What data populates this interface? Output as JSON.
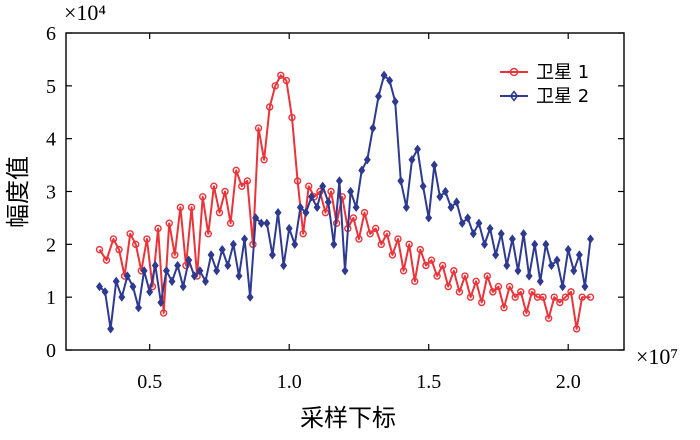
{
  "chart_data": {
    "type": "line",
    "title": "",
    "xlabel": "采样下标",
    "ylabel": "幅度值",
    "x_multiplier": "×10⁷",
    "y_multiplier": "×10⁴",
    "xlim": [
      0.2,
      2.2
    ],
    "ylim": [
      0,
      6
    ],
    "xticks": [
      0.5,
      1.0,
      1.5,
      2.0
    ],
    "xtick_labels": [
      "0.5",
      "1.0",
      "1.5",
      "2.0"
    ],
    "yticks": [
      0,
      1,
      2,
      3,
      4,
      5,
      6
    ],
    "ytick_labels": [
      "0",
      "1",
      "2",
      "3",
      "4",
      "5",
      "6"
    ],
    "legend_position": "top-right",
    "series": [
      {
        "name": "卫星 1",
        "color": "#e8343a",
        "marker": "circle",
        "x": [
          0.32,
          0.345,
          0.37,
          0.39,
          0.41,
          0.43,
          0.45,
          0.47,
          0.49,
          0.51,
          0.53,
          0.55,
          0.57,
          0.59,
          0.61,
          0.63,
          0.65,
          0.67,
          0.69,
          0.71,
          0.73,
          0.75,
          0.77,
          0.79,
          0.81,
          0.83,
          0.85,
          0.87,
          0.89,
          0.91,
          0.93,
          0.95,
          0.97,
          0.99,
          1.01,
          1.03,
          1.05,
          1.07,
          1.09,
          1.11,
          1.13,
          1.15,
          1.17,
          1.19,
          1.21,
          1.23,
          1.25,
          1.27,
          1.29,
          1.31,
          1.33,
          1.35,
          1.37,
          1.39,
          1.41,
          1.43,
          1.45,
          1.47,
          1.49,
          1.51,
          1.53,
          1.55,
          1.57,
          1.59,
          1.61,
          1.63,
          1.65,
          1.67,
          1.69,
          1.71,
          1.73,
          1.75,
          1.77,
          1.79,
          1.81,
          1.83,
          1.85,
          1.87,
          1.89,
          1.91,
          1.93,
          1.95,
          1.97,
          1.99,
          2.01,
          2.03,
          2.05,
          2.08
        ],
        "values": [
          1.9,
          1.7,
          2.1,
          1.9,
          1.4,
          2.2,
          2.0,
          1.5,
          2.1,
          1.2,
          2.3,
          0.7,
          2.4,
          1.8,
          2.7,
          1.6,
          2.7,
          1.4,
          2.9,
          2.2,
          3.1,
          2.6,
          3.0,
          2.4,
          3.4,
          3.1,
          3.2,
          2.0,
          4.2,
          3.6,
          4.6,
          5.0,
          5.2,
          5.1,
          4.4,
          3.2,
          2.2,
          3.1,
          2.9,
          3.0,
          2.6,
          3.0,
          2.4,
          2.9,
          2.3,
          2.5,
          2.1,
          2.6,
          2.2,
          2.3,
          2.0,
          2.2,
          1.8,
          2.1,
          1.5,
          2.0,
          1.3,
          1.9,
          1.6,
          1.7,
          1.4,
          1.6,
          1.2,
          1.5,
          1.1,
          1.4,
          1.0,
          1.3,
          0.9,
          1.4,
          1.1,
          1.2,
          0.8,
          1.2,
          1.0,
          1.1,
          0.7,
          1.1,
          1.0,
          1.0,
          0.6,
          1.0,
          0.9,
          1.0,
          1.1,
          0.4,
          1.0,
          1.0
        ]
      },
      {
        "name": "卫星 2",
        "color": "#2e3a8f",
        "marker": "diamond",
        "x": [
          0.32,
          0.34,
          0.36,
          0.38,
          0.4,
          0.42,
          0.44,
          0.46,
          0.48,
          0.5,
          0.52,
          0.54,
          0.56,
          0.58,
          0.6,
          0.62,
          0.64,
          0.66,
          0.68,
          0.7,
          0.72,
          0.74,
          0.76,
          0.78,
          0.8,
          0.82,
          0.84,
          0.86,
          0.88,
          0.9,
          0.92,
          0.94,
          0.96,
          0.98,
          1.0,
          1.02,
          1.04,
          1.06,
          1.08,
          1.1,
          1.12,
          1.14,
          1.16,
          1.18,
          1.2,
          1.22,
          1.24,
          1.26,
          1.28,
          1.3,
          1.32,
          1.34,
          1.36,
          1.38,
          1.4,
          1.42,
          1.44,
          1.46,
          1.48,
          1.5,
          1.52,
          1.54,
          1.56,
          1.58,
          1.6,
          1.62,
          1.64,
          1.66,
          1.68,
          1.7,
          1.72,
          1.74,
          1.76,
          1.78,
          1.8,
          1.82,
          1.84,
          1.86,
          1.88,
          1.9,
          1.92,
          1.94,
          1.96,
          1.98,
          2.0,
          2.02,
          2.04,
          2.06,
          2.08
        ],
        "values": [
          1.2,
          1.1,
          0.4,
          1.3,
          1.0,
          1.4,
          1.2,
          0.8,
          1.5,
          1.1,
          1.6,
          0.9,
          1.5,
          1.3,
          1.6,
          1.2,
          1.7,
          1.4,
          1.5,
          1.3,
          1.8,
          1.5,
          1.9,
          1.6,
          2.0,
          1.4,
          2.1,
          1.0,
          2.5,
          2.4,
          2.4,
          1.8,
          2.6,
          1.6,
          2.3,
          2.0,
          2.7,
          2.6,
          2.9,
          2.7,
          3.1,
          2.8,
          2.0,
          3.2,
          1.5,
          3.0,
          2.7,
          3.4,
          3.6,
          4.2,
          4.8,
          5.2,
          5.1,
          4.7,
          3.2,
          2.7,
          3.6,
          3.8,
          3.1,
          2.5,
          3.5,
          2.9,
          3.0,
          2.7,
          2.8,
          2.4,
          2.5,
          2.2,
          2.4,
          2.0,
          2.3,
          1.8,
          2.2,
          1.6,
          2.1,
          1.5,
          2.2,
          1.4,
          2.0,
          1.3,
          2.0,
          1.6,
          1.7,
          1.2,
          1.9,
          1.5,
          1.8,
          1.2,
          2.1
        ]
      }
    ]
  }
}
